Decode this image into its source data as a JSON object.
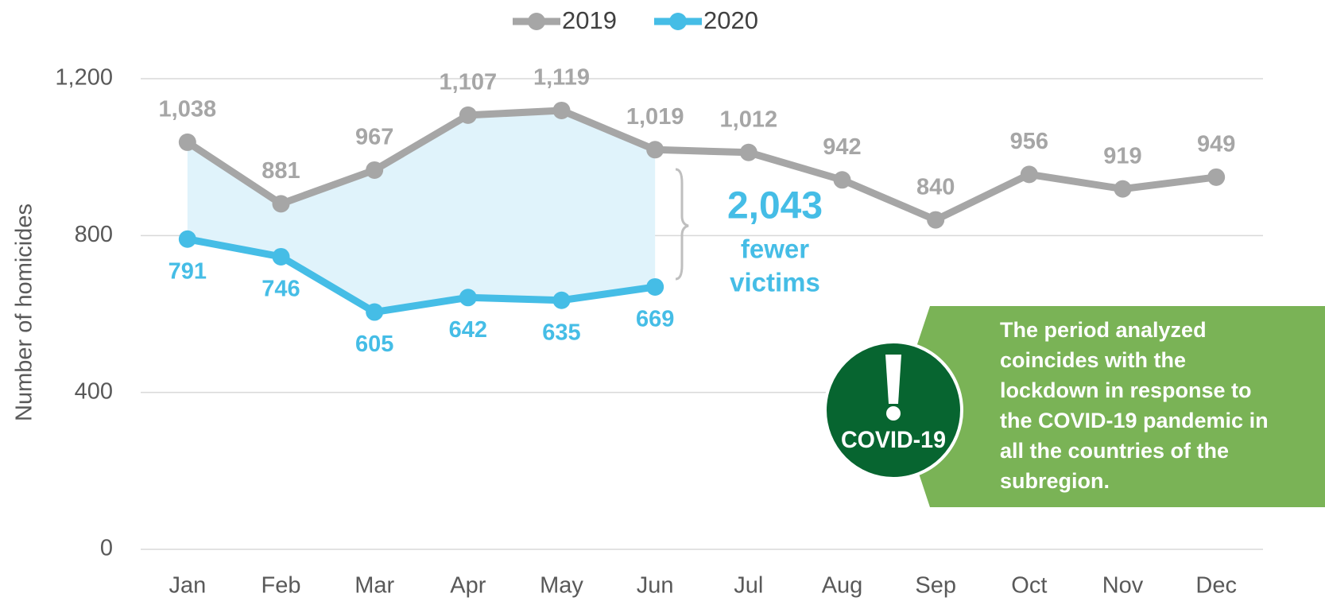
{
  "chart_data": {
    "type": "line",
    "y_label": "Number of  homicides",
    "categories": [
      "Jan",
      "Feb",
      "Mar",
      "Apr",
      "May",
      "Jun",
      "Jul",
      "Aug",
      "Sep",
      "Oct",
      "Nov",
      "Dec"
    ],
    "series": [
      {
        "name": "2019",
        "color": "#a6a6a6",
        "values": [
          1038,
          881,
          967,
          1107,
          1119,
          1019,
          1012,
          942,
          840,
          956,
          919,
          949
        ],
        "value_labels": [
          "1,038",
          "881",
          "967",
          "1,107",
          "1,119",
          "1,019",
          "1,012",
          "942",
          "840",
          "956",
          "919",
          "949"
        ]
      },
      {
        "name": "2020",
        "color": "#45bde6",
        "values": [
          791,
          746,
          605,
          642,
          635,
          669,
          null,
          null,
          null,
          null,
          null,
          null
        ]
      }
    ],
    "ylim": [
      0,
      1200
    ],
    "yticks": [
      0,
      400,
      800,
      {
        "value": 1200,
        "label": "1,200"
      }
    ],
    "grid": true,
    "legend": "top",
    "annotations": {
      "difference": "2,043",
      "difference_text": [
        "fewer",
        "victims"
      ],
      "badge": "COVID-19",
      "note": [
        "The period analyzed",
        "coincides with the",
        "lockdown in response to",
        "the COVID-19 pandemic in",
        "all the countries of the",
        "subregion."
      ]
    }
  }
}
